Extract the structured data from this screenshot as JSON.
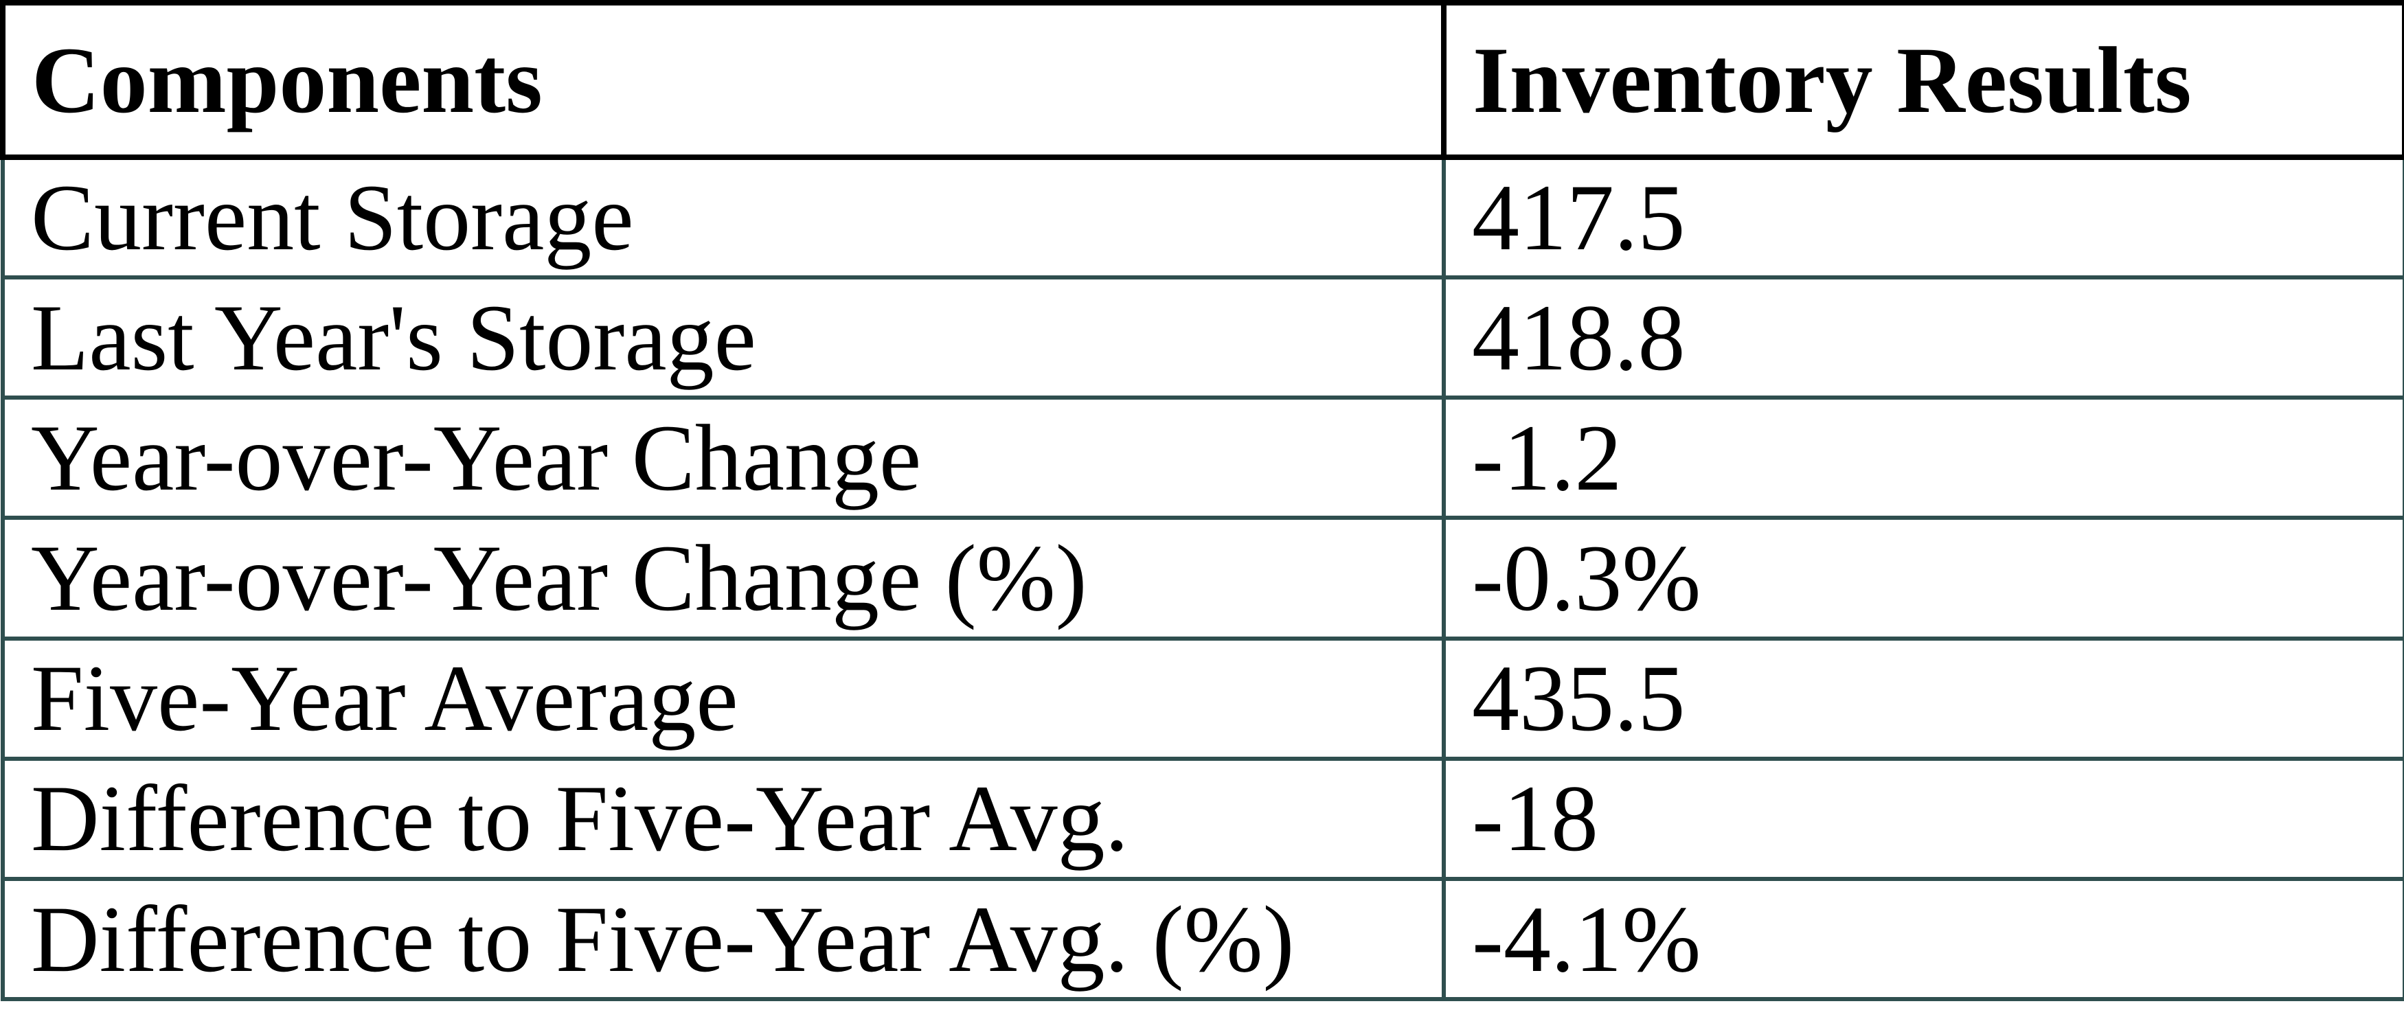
{
  "chart_data": {
    "type": "table",
    "columns": [
      "Components",
      "Inventory Results"
    ],
    "rows": [
      {
        "component": "Current Storage",
        "value": "417.5"
      },
      {
        "component": "Last Year's Storage",
        "value": "418.8"
      },
      {
        "component": "Year-over-Year Change",
        "value": "-1.2"
      },
      {
        "component": "Year-over-Year Change (%)",
        "value": "-0.3%"
      },
      {
        "component": "Five-Year Average",
        "value": "435.5"
      },
      {
        "component": "Difference to Five-Year Avg.",
        "value": "-18"
      },
      {
        "component": "Difference to Five-Year Avg. (%)",
        "value": "-4.1%"
      }
    ],
    "values_numeric": [
      417.5,
      418.8,
      -1.2,
      -0.3,
      435.5,
      -18,
      -4.1
    ],
    "layout": {
      "grid": "on",
      "header_position": "top-row",
      "column_split_fraction": 0.6
    }
  },
  "colors": {
    "header_border": "#000000",
    "body_border": "#2f4f4f",
    "text": "#000000",
    "background": "#ffffff"
  }
}
